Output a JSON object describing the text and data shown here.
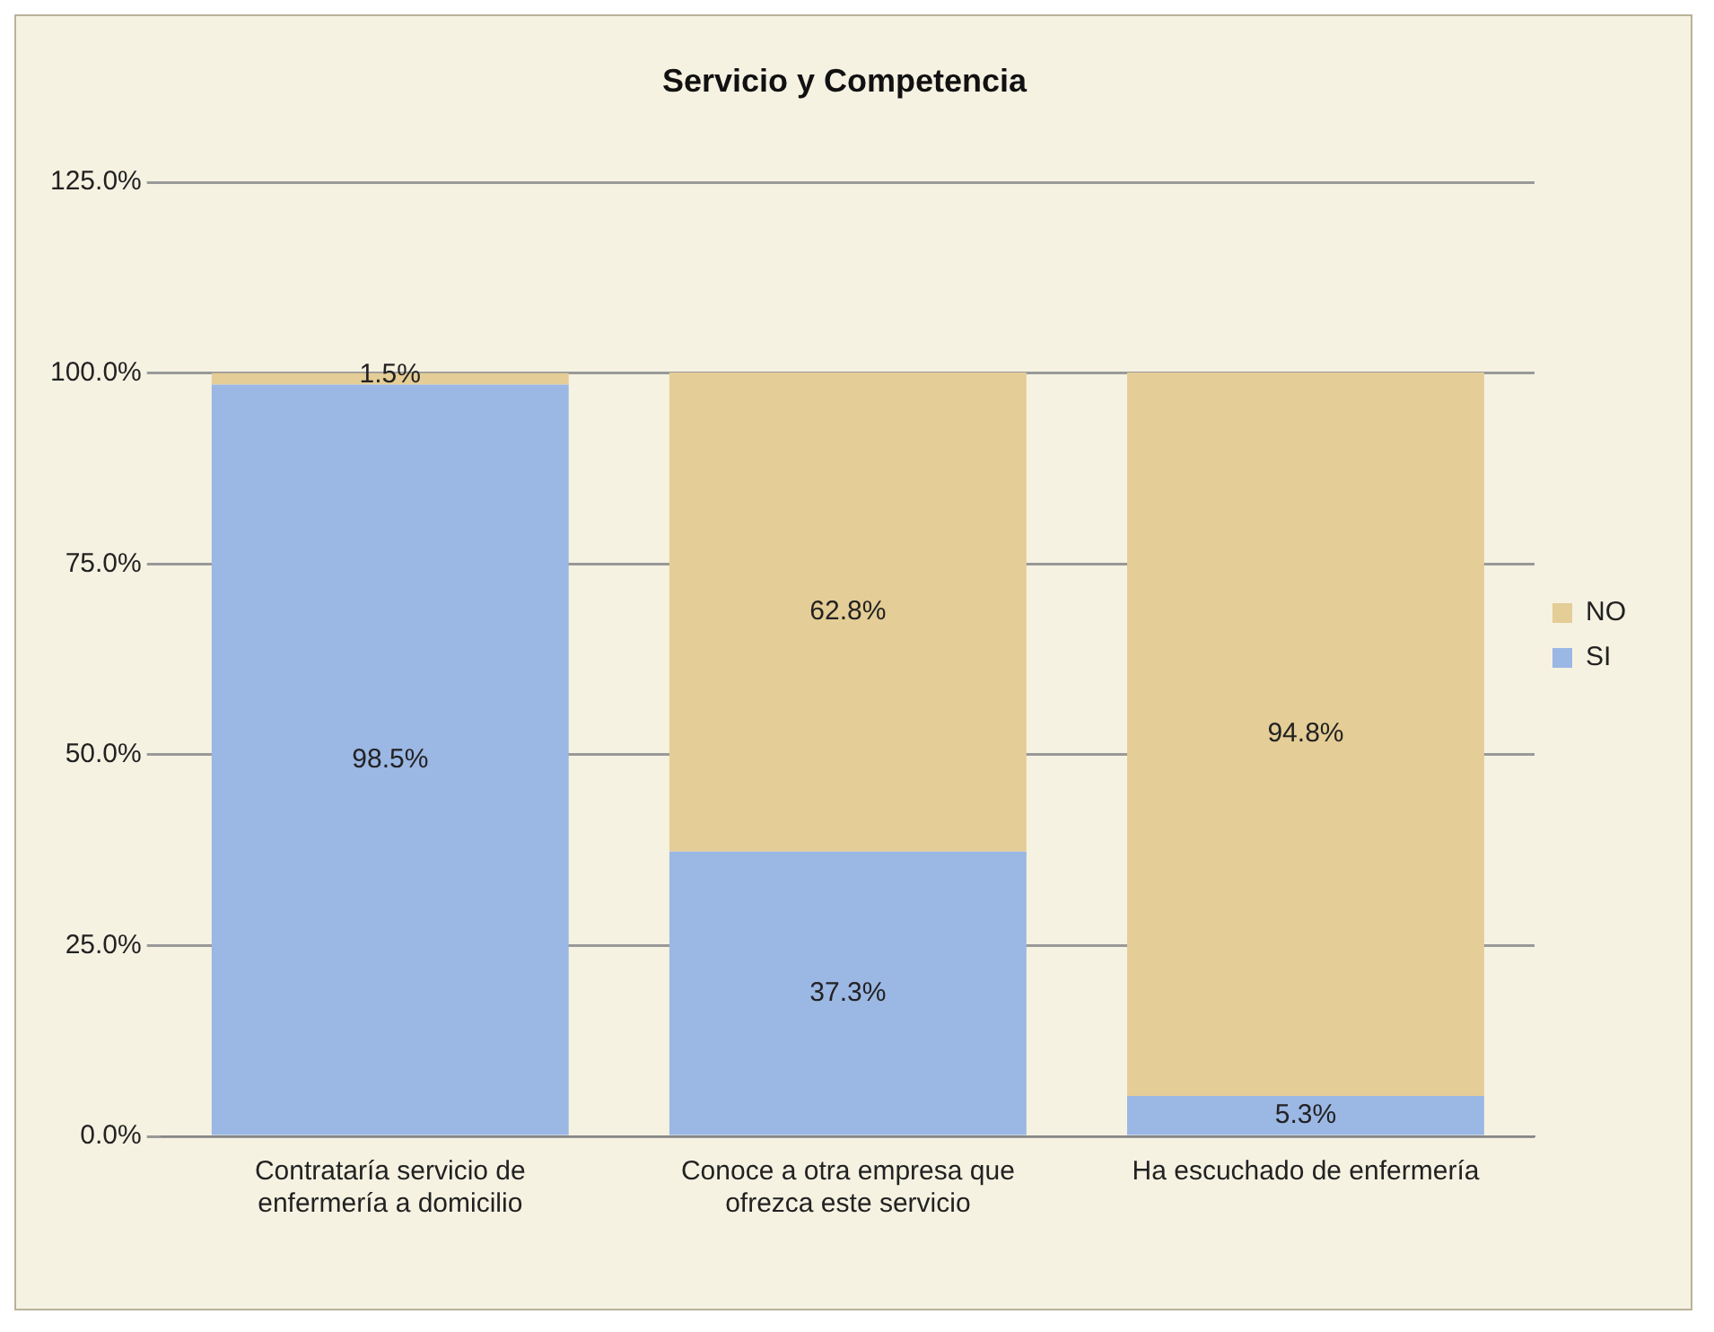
{
  "chart_data": {
    "type": "bar",
    "title": "Servicio y Competencia",
    "stacked": true,
    "categories": [
      "Contrataría servicio de enfermería a domicilio",
      "Conoce a otra empresa que ofrezca este servicio",
      "Ha escuchado de enfermería"
    ],
    "series": [
      {
        "name": "SI",
        "color": "#9bb7e4",
        "values": [
          98.5,
          37.3,
          5.3
        ],
        "value_labels": [
          "98.5%",
          "37.3%",
          "5.3%"
        ]
      },
      {
        "name": "NO",
        "color": "#e4cd96",
        "values": [
          1.5,
          62.8,
          94.8
        ],
        "value_labels": [
          "1.5%",
          "62.8%",
          "94.8%"
        ]
      }
    ],
    "ylim": [
      0,
      125
    ],
    "yticks": [
      {
        "value": 0,
        "label": "0.0%"
      },
      {
        "value": 25,
        "label": "25.0%"
      },
      {
        "value": 50,
        "label": "50.0%"
      },
      {
        "value": 75,
        "label": "75.0%"
      },
      {
        "value": 100,
        "label": "100.0%"
      },
      {
        "value": 125,
        "label": "125.0%"
      }
    ],
    "grid": "y",
    "legend": "right"
  }
}
